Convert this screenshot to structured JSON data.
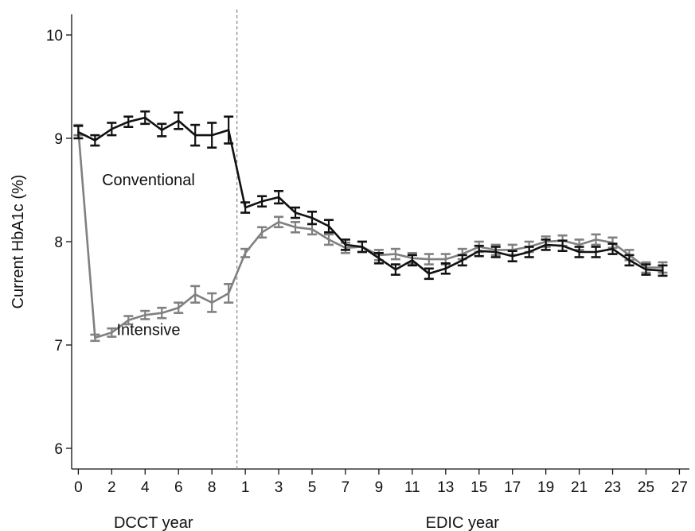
{
  "chart_data": {
    "type": "line",
    "title": "",
    "ylabel": "Current HbA1c (%)",
    "ylim": [
      5.8,
      10.2
    ],
    "yticks": [
      6,
      7,
      8,
      9,
      10
    ],
    "grid": false,
    "period_break_x": 9.5,
    "xlim": [
      -0.4,
      36.6
    ],
    "x_axis_groups": [
      {
        "name": "DCCT year",
        "x_start": 0,
        "x_end": 9
      },
      {
        "name": "EDIC year",
        "x_start": 10,
        "x_end": 36
      }
    ],
    "x_ticks": [
      {
        "x": 0,
        "label": "0"
      },
      {
        "x": 2,
        "label": "2"
      },
      {
        "x": 4,
        "label": "4"
      },
      {
        "x": 6,
        "label": "6"
      },
      {
        "x": 8,
        "label": "8"
      },
      {
        "x": 10,
        "label": "1"
      },
      {
        "x": 12,
        "label": "3"
      },
      {
        "x": 14,
        "label": "5"
      },
      {
        "x": 16,
        "label": "7"
      },
      {
        "x": 18,
        "label": "9"
      },
      {
        "x": 20,
        "label": "11"
      },
      {
        "x": 22,
        "label": "13"
      },
      {
        "x": 24,
        "label": "15"
      },
      {
        "x": 26,
        "label": "17"
      },
      {
        "x": 28,
        "label": "19"
      },
      {
        "x": 30,
        "label": "21"
      },
      {
        "x": 32,
        "label": "23"
      },
      {
        "x": 34,
        "label": "25"
      },
      {
        "x": 36,
        "label": "27"
      }
    ],
    "x": [
      0,
      1,
      2,
      3,
      4,
      5,
      6,
      7,
      8,
      9,
      10,
      11,
      12,
      13,
      14,
      15,
      16,
      17,
      18,
      19,
      20,
      21,
      22,
      23,
      24,
      25,
      26,
      27,
      28,
      29,
      30,
      31,
      32,
      33,
      34,
      35
    ],
    "series": [
      {
        "name": "Conventional",
        "color": "#111111",
        "label_at": {
          "x": 4.2,
          "y": 8.6
        },
        "values": [
          9.06,
          8.98,
          9.09,
          9.16,
          9.2,
          9.08,
          9.17,
          9.03,
          9.03,
          9.08,
          8.33,
          8.39,
          8.43,
          8.28,
          8.23,
          8.15,
          7.97,
          7.95,
          7.84,
          7.73,
          7.82,
          7.69,
          7.74,
          7.82,
          7.91,
          7.9,
          7.86,
          7.9,
          7.97,
          7.96,
          7.9,
          7.9,
          7.93,
          7.82,
          7.73,
          7.72
        ],
        "errors": [
          0.06,
          0.05,
          0.06,
          0.05,
          0.06,
          0.06,
          0.08,
          0.1,
          0.12,
          0.13,
          0.05,
          0.05,
          0.06,
          0.05,
          0.06,
          0.06,
          0.05,
          0.05,
          0.05,
          0.05,
          0.05,
          0.05,
          0.05,
          0.05,
          0.05,
          0.05,
          0.05,
          0.05,
          0.05,
          0.05,
          0.05,
          0.05,
          0.05,
          0.05,
          0.05,
          0.05
        ]
      },
      {
        "name": "Intensive",
        "color": "#808080",
        "label_at": {
          "x": 4.2,
          "y": 7.15
        },
        "values": [
          9.08,
          7.07,
          7.12,
          7.24,
          7.29,
          7.31,
          7.36,
          7.49,
          7.41,
          7.5,
          7.89,
          8.09,
          8.19,
          8.14,
          8.12,
          8.02,
          7.94,
          7.95,
          7.87,
          7.88,
          7.84,
          7.83,
          7.83,
          7.88,
          7.95,
          7.92,
          7.92,
          7.95,
          8.0,
          8.01,
          7.97,
          8.02,
          7.99,
          7.87,
          7.75,
          7.75
        ],
        "errors": [
          0.05,
          0.03,
          0.04,
          0.04,
          0.04,
          0.05,
          0.05,
          0.08,
          0.09,
          0.09,
          0.04,
          0.05,
          0.05,
          0.05,
          0.05,
          0.05,
          0.05,
          0.05,
          0.05,
          0.05,
          0.05,
          0.05,
          0.05,
          0.05,
          0.05,
          0.05,
          0.05,
          0.05,
          0.05,
          0.05,
          0.05,
          0.05,
          0.05,
          0.05,
          0.05,
          0.05
        ]
      }
    ]
  }
}
